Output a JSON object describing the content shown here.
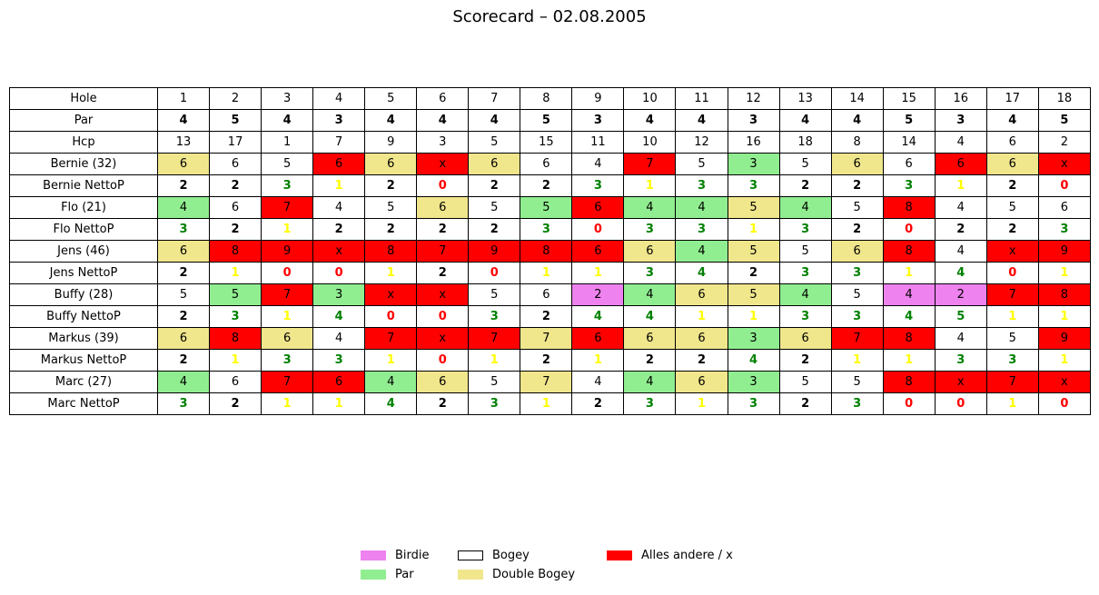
{
  "chart_data": {
    "type": "table",
    "title": "Scorecard – 02.08.2005",
    "colors": {
      "birdie": "#ee82ee",
      "par": "#90ee90",
      "bogey": "#ffffff",
      "double_bogey": "#f0e68c",
      "other": "#ff0000",
      "netto_green": "#008000",
      "netto_yellow": "#ffff00",
      "netto_red": "#ff0000",
      "netto_black": "#000000"
    },
    "header": {
      "hole_label": "Hole",
      "holes": [
        "1",
        "2",
        "3",
        "4",
        "5",
        "6",
        "7",
        "8",
        "9",
        "10",
        "11",
        "12",
        "13",
        "14",
        "15",
        "16",
        "17",
        "18"
      ],
      "par_label": "Par",
      "par": [
        "4",
        "5",
        "4",
        "3",
        "4",
        "4",
        "4",
        "5",
        "3",
        "4",
        "4",
        "3",
        "4",
        "4",
        "5",
        "3",
        "4",
        "5"
      ],
      "hcp_label": "Hcp",
      "hcp": [
        "13",
        "17",
        "1",
        "7",
        "9",
        "3",
        "5",
        "15",
        "11",
        "10",
        "12",
        "16",
        "18",
        "8",
        "14",
        "4",
        "6",
        "2"
      ]
    },
    "players": [
      {
        "name": "Bernie (32)",
        "scores": [
          "6",
          "6",
          "5",
          "6",
          "6",
          "x",
          "6",
          "6",
          "4",
          "7",
          "5",
          "3",
          "5",
          "6",
          "6",
          "6",
          "6",
          "x"
        ],
        "score_class": [
          "double_bogey",
          "bogey",
          "bogey",
          "other",
          "double_bogey",
          "other",
          "double_bogey",
          "bogey",
          "bogey",
          "other",
          "bogey",
          "par",
          "bogey",
          "double_bogey",
          "bogey",
          "other",
          "double_bogey",
          "other"
        ],
        "netto_label": "Bernie NettoP",
        "netto": [
          "2",
          "2",
          "3",
          "1",
          "2",
          "0",
          "2",
          "2",
          "3",
          "1",
          "3",
          "3",
          "2",
          "2",
          "3",
          "1",
          "2",
          "0"
        ]
      },
      {
        "name": "Flo (21)",
        "scores": [
          "4",
          "6",
          "7",
          "4",
          "5",
          "6",
          "5",
          "5",
          "6",
          "4",
          "4",
          "5",
          "4",
          "5",
          "8",
          "4",
          "5",
          "6"
        ],
        "score_class": [
          "par",
          "bogey",
          "other",
          "bogey",
          "bogey",
          "double_bogey",
          "bogey",
          "par",
          "other",
          "par",
          "par",
          "double_bogey",
          "par",
          "bogey",
          "other",
          "bogey",
          "bogey",
          "bogey"
        ],
        "netto_label": "Flo NettoP",
        "netto": [
          "3",
          "2",
          "1",
          "2",
          "2",
          "2",
          "2",
          "3",
          "0",
          "3",
          "3",
          "1",
          "3",
          "2",
          "0",
          "2",
          "2",
          "3"
        ]
      },
      {
        "name": "Jens (46)",
        "scores": [
          "6",
          "8",
          "9",
          "x",
          "8",
          "7",
          "9",
          "8",
          "6",
          "6",
          "4",
          "5",
          "5",
          "6",
          "8",
          "4",
          "x",
          "9"
        ],
        "score_class": [
          "double_bogey",
          "other",
          "other",
          "other",
          "other",
          "other",
          "other",
          "other",
          "other",
          "double_bogey",
          "par",
          "double_bogey",
          "bogey",
          "double_bogey",
          "other",
          "bogey",
          "other",
          "other"
        ],
        "netto_label": "Jens NettoP",
        "netto": [
          "2",
          "1",
          "0",
          "0",
          "1",
          "2",
          "0",
          "1",
          "1",
          "3",
          "4",
          "2",
          "3",
          "3",
          "1",
          "4",
          "0",
          "1"
        ]
      },
      {
        "name": "Buffy (28)",
        "scores": [
          "5",
          "5",
          "7",
          "3",
          "x",
          "x",
          "5",
          "6",
          "2",
          "4",
          "6",
          "5",
          "4",
          "5",
          "4",
          "2",
          "7",
          "8"
        ],
        "score_class": [
          "bogey",
          "par",
          "other",
          "par",
          "other",
          "other",
          "bogey",
          "bogey",
          "birdie",
          "par",
          "double_bogey",
          "double_bogey",
          "par",
          "bogey",
          "birdie",
          "birdie",
          "other",
          "other"
        ],
        "netto_label": "Buffy NettoP",
        "netto": [
          "2",
          "3",
          "1",
          "4",
          "0",
          "0",
          "3",
          "2",
          "4",
          "4",
          "1",
          "1",
          "3",
          "3",
          "4",
          "5",
          "1",
          "1"
        ]
      },
      {
        "name": "Markus (39)",
        "scores": [
          "6",
          "8",
          "6",
          "4",
          "7",
          "x",
          "7",
          "7",
          "6",
          "6",
          "6",
          "3",
          "6",
          "7",
          "8",
          "4",
          "5",
          "9"
        ],
        "score_class": [
          "double_bogey",
          "other",
          "double_bogey",
          "bogey",
          "other",
          "other",
          "other",
          "double_bogey",
          "other",
          "double_bogey",
          "double_bogey",
          "par",
          "double_bogey",
          "other",
          "other",
          "bogey",
          "bogey",
          "other"
        ],
        "netto_label": "Markus NettoP",
        "netto": [
          "2",
          "1",
          "3",
          "3",
          "1",
          "0",
          "1",
          "2",
          "1",
          "2",
          "2",
          "4",
          "2",
          "1",
          "1",
          "3",
          "3",
          "1"
        ]
      },
      {
        "name": "Marc (27)",
        "scores": [
          "4",
          "6",
          "7",
          "6",
          "4",
          "6",
          "5",
          "7",
          "4",
          "4",
          "6",
          "3",
          "5",
          "5",
          "8",
          "x",
          "7",
          "x"
        ],
        "score_class": [
          "par",
          "bogey",
          "other",
          "other",
          "par",
          "double_bogey",
          "bogey",
          "double_bogey",
          "bogey",
          "par",
          "double_bogey",
          "par",
          "bogey",
          "bogey",
          "other",
          "other",
          "other",
          "other"
        ],
        "netto_label": "Marc NettoP",
        "netto": [
          "3",
          "2",
          "1",
          "1",
          "4",
          "2",
          "3",
          "1",
          "2",
          "3",
          "1",
          "3",
          "2",
          "3",
          "0",
          "0",
          "1",
          "0"
        ]
      }
    ],
    "legend": {
      "placement": "bottom-center",
      "entries": [
        {
          "label": "Birdie",
          "color": "#ee82ee"
        },
        {
          "label": "Par",
          "color": "#90ee90"
        },
        {
          "label": "Bogey",
          "color": "#ffffff"
        },
        {
          "label": "Double Bogey",
          "color": "#f0e68c"
        },
        {
          "label": "Alles andere / x",
          "color": "#ff0000"
        }
      ]
    }
  }
}
